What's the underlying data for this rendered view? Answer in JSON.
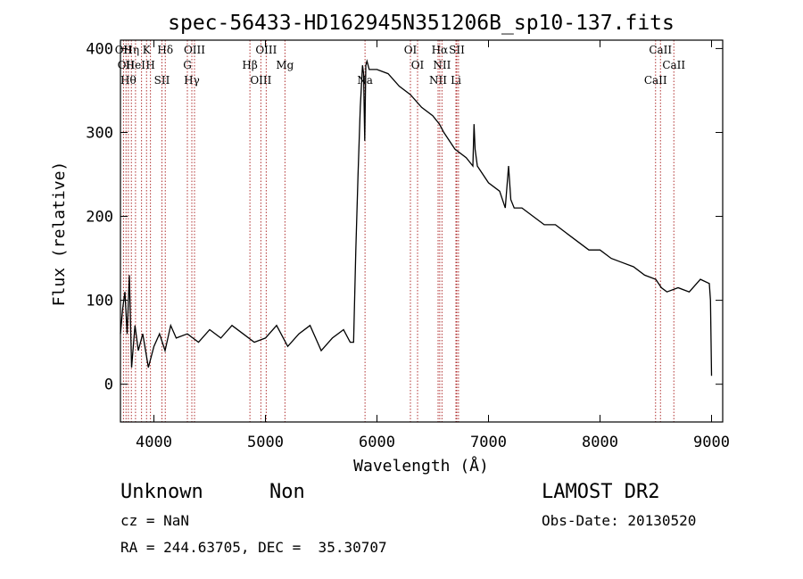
{
  "chart_data": {
    "type": "line",
    "title": "spec-56433-HD162945N351206B_sp10-137.fits",
    "xlabel": "Wavelength (Å)",
    "ylabel": "Flux (relative)",
    "xlim": [
      3700,
      9100
    ],
    "ylim": [
      -45,
      410
    ],
    "xticks": [
      4000,
      5000,
      6000,
      7000,
      8000,
      9000
    ],
    "yticks": [
      0,
      100,
      200,
      300,
      400
    ],
    "grid": false,
    "spectrum_color": "#000000",
    "line_marker_color": "#b03030",
    "x": [
      3700,
      3720,
      3740,
      3760,
      3780,
      3800,
      3830,
      3860,
      3900,
      3950,
      4000,
      4050,
      4100,
      4150,
      4200,
      4300,
      4400,
      4500,
      4600,
      4700,
      4800,
      4900,
      5000,
      5100,
      5200,
      5300,
      5400,
      5500,
      5600,
      5700,
      5760,
      5790,
      5810,
      5830,
      5850,
      5870,
      5880,
      5890,
      5900,
      5910,
      5930,
      6000,
      6100,
      6200,
      6300,
      6400,
      6500,
      6560,
      6600,
      6700,
      6800,
      6860,
      6870,
      6880,
      6900,
      7000,
      7100,
      7150,
      7180,
      7200,
      7230,
      7300,
      7400,
      7500,
      7600,
      7700,
      7800,
      7900,
      8000,
      8100,
      8200,
      8300,
      8400,
      8500,
      8550,
      8600,
      8700,
      8800,
      8900,
      8980,
      8990,
      9000
    ],
    "y": [
      60,
      90,
      110,
      60,
      130,
      20,
      70,
      40,
      60,
      20,
      45,
      60,
      40,
      70,
      55,
      60,
      50,
      65,
      55,
      70,
      60,
      50,
      55,
      70,
      45,
      60,
      70,
      40,
      55,
      65,
      50,
      50,
      160,
      250,
      330,
      380,
      370,
      290,
      380,
      385,
      375,
      375,
      370,
      355,
      345,
      330,
      320,
      310,
      300,
      280,
      270,
      260,
      310,
      280,
      260,
      240,
      230,
      210,
      260,
      220,
      210,
      210,
      200,
      190,
      190,
      180,
      170,
      160,
      160,
      150,
      145,
      140,
      130,
      125,
      115,
      110,
      115,
      110,
      125,
      120,
      100,
      10
    ],
    "lines": [
      {
        "wl": 3727,
        "labels": [
          "OII"
        ]
      },
      {
        "wl": 3750,
        "labels": [
          "OII"
        ]
      },
      {
        "wl": 3771,
        "labels": [
          "Hθ"
        ]
      },
      {
        "wl": 3798,
        "labels": [
          "Hη"
        ]
      },
      {
        "wl": 3835,
        "labels": [
          "HeI"
        ]
      },
      {
        "wl": 3889,
        "labels": [
          ""
        ]
      },
      {
        "wl": 3934,
        "labels": [
          "K"
        ]
      },
      {
        "wl": 3969,
        "labels": [
          "H"
        ]
      },
      {
        "wl": 4072,
        "labels": [
          "SII"
        ]
      },
      {
        "wl": 4102,
        "labels": [
          "Hδ"
        ]
      },
      {
        "wl": 4300,
        "labels": [
          "G"
        ]
      },
      {
        "wl": 4340,
        "labels": [
          "Hγ"
        ]
      },
      {
        "wl": 4364,
        "labels": [
          "OIII"
        ]
      },
      {
        "wl": 4861,
        "labels": [
          "Hβ"
        ]
      },
      {
        "wl": 4959,
        "labels": [
          "OIII"
        ]
      },
      {
        "wl": 5007,
        "labels": [
          "OIII"
        ]
      },
      {
        "wl": 5175,
        "labels": [
          "Mg"
        ]
      },
      {
        "wl": 5893,
        "labels": [
          "Na"
        ]
      },
      {
        "wl": 6300,
        "labels": [
          "OI"
        ]
      },
      {
        "wl": 6364,
        "labels": [
          "OI"
        ]
      },
      {
        "wl": 6548,
        "labels": [
          "NII"
        ]
      },
      {
        "wl": 6563,
        "labels": [
          "Hα"
        ]
      },
      {
        "wl": 6583,
        "labels": [
          "NII"
        ]
      },
      {
        "wl": 6708,
        "labels": [
          "Li"
        ]
      },
      {
        "wl": 6716,
        "labels": [
          "SII"
        ]
      },
      {
        "wl": 6731,
        "labels": [
          ""
        ]
      },
      {
        "wl": 8498,
        "labels": [
          "CaII"
        ]
      },
      {
        "wl": 8542,
        "labels": [
          "CaII"
        ]
      },
      {
        "wl": 8662,
        "labels": [
          "CaII"
        ]
      }
    ]
  },
  "info": {
    "class": "Unknown",
    "subclass": "Non",
    "survey": "LAMOST DR2",
    "cz": "cz = NaN",
    "obs_date": "Obs-Date: 20130520",
    "coords": "RA = 244.63705, DEC =  35.30707"
  }
}
